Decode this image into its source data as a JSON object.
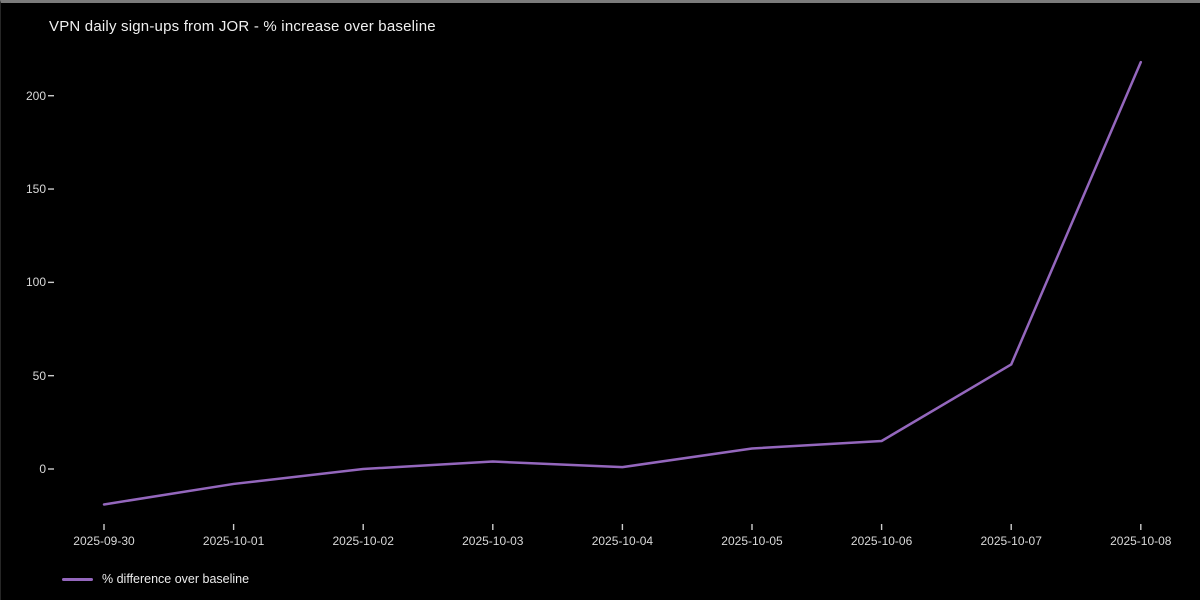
{
  "window": {
    "background": "#000000",
    "border_top_color": "#7b7b7b"
  },
  "colors": {
    "line": "#9467bd",
    "text": "#d9d9d9",
    "title_text": "#f0f0f0",
    "tick": "#cccccc"
  },
  "chart_data": {
    "type": "line",
    "title": "VPN daily sign-ups from JOR - % increase over baseline",
    "xlabel": "",
    "ylabel": "",
    "categories": [
      "2025-09-30",
      "2025-10-01",
      "2025-10-02",
      "2025-10-03",
      "2025-10-04",
      "2025-10-05",
      "2025-10-06",
      "2025-10-07",
      "2025-10-08"
    ],
    "series": [
      {
        "name": "% difference over baseline",
        "color": "#9467bd",
        "values": [
          -19,
          -8,
          0,
          4,
          1,
          11,
          15,
          56,
          218
        ]
      }
    ],
    "y_ticks": [
      0,
      50,
      100,
      150,
      200
    ],
    "ylim": [
      -30,
      225
    ],
    "grid": false,
    "legend_position": "bottom-left",
    "background": "#000000"
  }
}
